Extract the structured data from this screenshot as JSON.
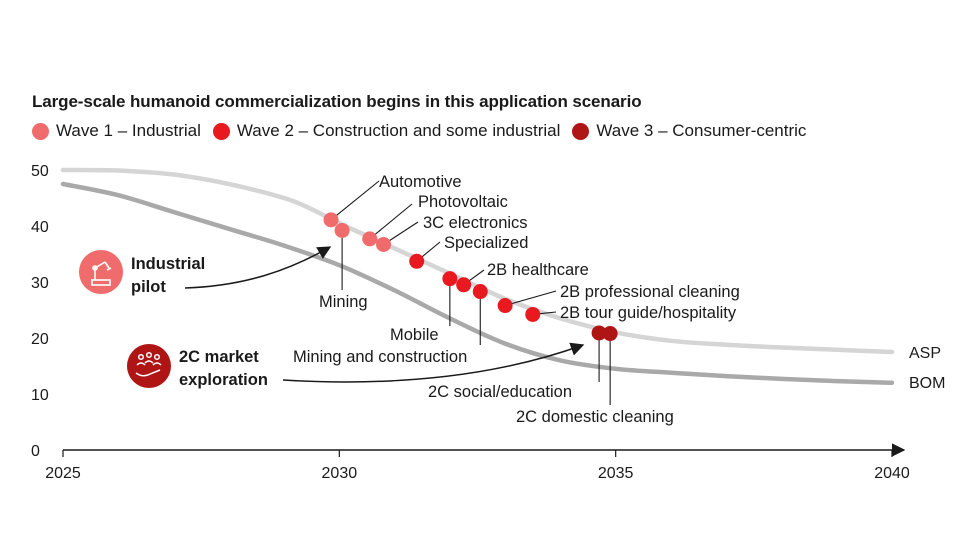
{
  "chart_data": {
    "type": "line",
    "title": "Large-scale humanoid commercialization begins in this application scenario",
    "legend": [
      {
        "label": "Wave 1 – Industrial",
        "color": "#f06b6b"
      },
      {
        "label": "Wave 2 – Construction and some industrial",
        "color": "#e8191f"
      },
      {
        "label": "Wave 3 – Consumer-centric",
        "color": "#b01515"
      }
    ],
    "x_ticks": [
      "2025",
      "2030",
      "2035",
      "2040"
    ],
    "y_ticks": [
      "0",
      "10",
      "20",
      "30",
      "40",
      "50"
    ],
    "xlim": [
      2025,
      2040
    ],
    "ylim": [
      0,
      50
    ],
    "series": [
      {
        "name": "ASP",
        "color": "#d5d5d5",
        "x": [
          2025,
          2026,
          2027,
          2028,
          2029,
          2029.5,
          2030,
          2031,
          2032,
          2033,
          2034,
          2035,
          2036,
          2037,
          2038,
          2039,
          2040
        ],
        "y": [
          50,
          49.9,
          49.2,
          47.5,
          45,
          43,
          40.5,
          36,
          31.5,
          27,
          23.5,
          21,
          19.5,
          18.8,
          18.3,
          17.9,
          17.5
        ]
      },
      {
        "name": "BOM",
        "color": "#a9a9a9",
        "x": [
          2025,
          2026,
          2027,
          2028,
          2029,
          2030,
          2031,
          2032,
          2033,
          2034,
          2035,
          2036,
          2037,
          2038,
          2039,
          2040
        ],
        "y": [
          47.5,
          45.5,
          42.5,
          39.5,
          36.5,
          33,
          28.5,
          23.5,
          19,
          16,
          14.5,
          13.8,
          13.2,
          12.7,
          12.3,
          12
        ]
      }
    ],
    "points": [
      {
        "label": "Automotive",
        "x": 2029.85,
        "y": 41.1,
        "wave": 1
      },
      {
        "label": "Mining",
        "x": 2030.05,
        "y": 39.2,
        "wave": 1
      },
      {
        "label": "Photovoltaic",
        "x": 2030.55,
        "y": 37.7,
        "wave": 1
      },
      {
        "label": "3C electronics",
        "x": 2030.8,
        "y": 36.7,
        "wave": 1
      },
      {
        "label": "Specialized",
        "x": 2031.4,
        "y": 33.7,
        "wave": 2
      },
      {
        "label": "Mobile",
        "x": 2032.0,
        "y": 30.6,
        "wave": 2
      },
      {
        "label": "2B healthcare",
        "x": 2032.25,
        "y": 29.5,
        "wave": 2
      },
      {
        "label": "Mining and construction",
        "x": 2032.55,
        "y": 28.3,
        "wave": 2
      },
      {
        "label": "2B professional cleaning",
        "x": 2033.0,
        "y": 25.8,
        "wave": 2
      },
      {
        "label": "2B tour guide/hospitality",
        "x": 2033.5,
        "y": 24.2,
        "wave": 2
      },
      {
        "label": "2C social/education",
        "x": 2034.7,
        "y": 20.9,
        "wave": 3
      },
      {
        "label": "2C domestic cleaning",
        "x": 2034.9,
        "y": 20.8,
        "wave": 3
      }
    ],
    "annotations": {
      "industrial_pilot": "Industrial pilot",
      "market_exploration": "2C market exploration"
    }
  }
}
